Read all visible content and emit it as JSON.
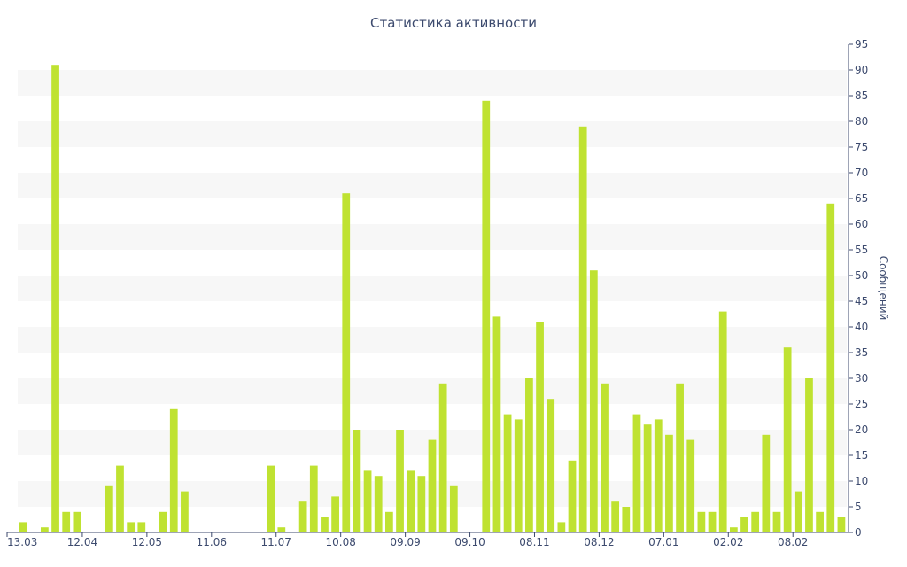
{
  "chart_data": {
    "type": "bar",
    "title": "Статистика активности",
    "ylabel": "Сообщений",
    "ylim": [
      0,
      95
    ],
    "y_ticks": [
      0,
      5,
      10,
      15,
      20,
      25,
      30,
      35,
      40,
      45,
      50,
      55,
      60,
      65,
      70,
      75,
      80,
      85,
      90,
      95
    ],
    "y_axis_position": "right",
    "x_ticks": [
      "13.03",
      "12.04",
      "12.05",
      "11.06",
      "11.07",
      "10.08",
      "09.09",
      "09.10",
      "08.11",
      "08.12",
      "07.01",
      "02.02",
      "08.02"
    ],
    "values": [
      2,
      0,
      1,
      91,
      4,
      4,
      0,
      0,
      9,
      13,
      2,
      2,
      0,
      4,
      24,
      8,
      0,
      0,
      0,
      0,
      0,
      0,
      0,
      13,
      1,
      0,
      6,
      13,
      3,
      7,
      66,
      20,
      12,
      11,
      4,
      20,
      12,
      11,
      18,
      29,
      9,
      0,
      0,
      84,
      42,
      23,
      22,
      30,
      41,
      26,
      2,
      14,
      79,
      51,
      29,
      6,
      5,
      23,
      21,
      22,
      19,
      29,
      18,
      4,
      4,
      43,
      1,
      3,
      4,
      19,
      4,
      36,
      8,
      30,
      4,
      64,
      3
    ],
    "colors": {
      "bar": "#bfe231",
      "band": "#f7f7f7",
      "axis": "#3c4a6e",
      "text": "#3c4a6e"
    },
    "grid": "alternating horizontal bands"
  }
}
